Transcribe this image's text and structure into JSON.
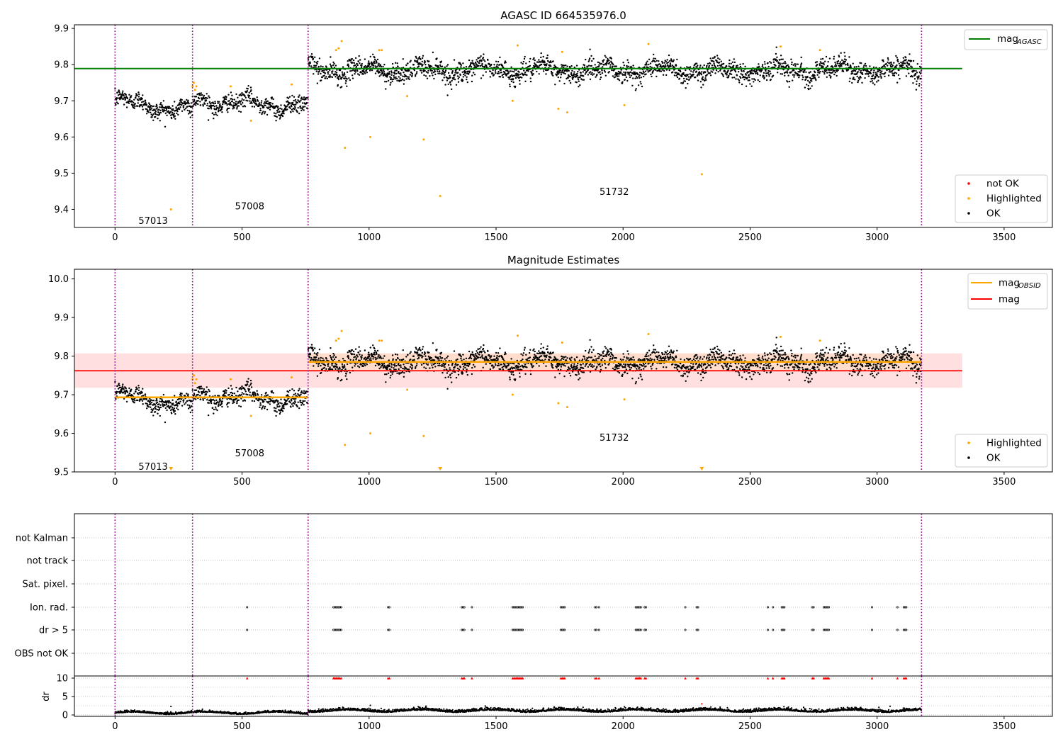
{
  "figure": {
    "title_top": "AGASC ID 664535976.0",
    "title_mid": "Magnitude Estimates"
  },
  "chart_data": [
    {
      "type": "scatter",
      "title": "AGASC ID 664535976.0",
      "xlim": [
        -160,
        3690
      ],
      "ylim": [
        9.35,
        9.91
      ],
      "xticks": [
        0,
        500,
        1000,
        1500,
        2000,
        2500,
        3000,
        3500
      ],
      "yticks": [
        9.4,
        9.5,
        9.6,
        9.7,
        9.8,
        9.9
      ],
      "obs_boundaries": [
        0,
        305,
        760,
        3175
      ],
      "obs_labels": [
        {
          "text": "57013",
          "x": 150,
          "y": 9.37
        },
        {
          "text": "57008",
          "x": 530,
          "y": 9.41
        },
        {
          "text": "51732",
          "x": 1965,
          "y": 9.45
        }
      ],
      "segments": [
        {
          "x0": 0,
          "x1": 305,
          "base": 9.7,
          "trend": -0.03,
          "noise": 0.012,
          "n": 300
        },
        {
          "x0": 305,
          "x1": 760,
          "base": 9.7,
          "trend": -0.015,
          "noise": 0.012,
          "n": 430
        },
        {
          "x0": 760,
          "x1": 3175,
          "base": 9.785,
          "trend": 0.0,
          "noise": 0.014,
          "n": 2300
        }
      ],
      "lines": [
        {
          "name": "mag_AGASC",
          "y": 9.789,
          "x0": -160,
          "x1": 3335,
          "color": "#008000"
        }
      ],
      "highlighted_points": [
        [
          220,
          9.4
        ],
        [
          305,
          9.74
        ],
        [
          310,
          9.75
        ],
        [
          315,
          9.73
        ],
        [
          320,
          9.74
        ],
        [
          455,
          9.74
        ],
        [
          535,
          9.645
        ],
        [
          695,
          9.745
        ],
        [
          870,
          9.84
        ],
        [
          880,
          9.845
        ],
        [
          892,
          9.865
        ],
        [
          905,
          9.57
        ],
        [
          1005,
          9.6
        ],
        [
          1040,
          9.84
        ],
        [
          1050,
          9.84
        ],
        [
          1150,
          9.713
        ],
        [
          1215,
          9.593
        ],
        [
          1280,
          9.437
        ],
        [
          1565,
          9.7
        ],
        [
          1585,
          9.853
        ],
        [
          1745,
          9.678
        ],
        [
          1760,
          9.835
        ],
        [
          1780,
          9.668
        ],
        [
          2005,
          9.688
        ],
        [
          2100,
          9.857
        ],
        [
          2310,
          9.497
        ],
        [
          2620,
          9.85
        ],
        [
          2775,
          9.84
        ]
      ],
      "legend_series": [
        {
          "label": "not OK",
          "color": "#ff0000"
        },
        {
          "label": "Highlighted",
          "color": "#ffa500"
        },
        {
          "label": "OK",
          "color": "#000000"
        }
      ],
      "legend_lines": [
        {
          "label": "mag",
          "sub": "AGASC",
          "color": "#008000"
        }
      ],
      "colors": {
        "ok": "#000000",
        "highlighted": "#ffa500",
        "not_ok": "#ff0000",
        "boundary": "#800080"
      }
    },
    {
      "type": "scatter",
      "title": "Magnitude Estimates",
      "xlim": [
        -160,
        3690
      ],
      "ylim": [
        9.5,
        10.025
      ],
      "xticks": [
        0,
        500,
        1000,
        1500,
        2000,
        2500,
        3000,
        3500
      ],
      "yticks": [
        9.5,
        9.6,
        9.7,
        9.8,
        9.9,
        10.0
      ],
      "obs_boundaries": [
        0,
        305,
        760,
        3175
      ],
      "obs_labels": [
        {
          "text": "57013",
          "x": 150,
          "y": 9.515
        },
        {
          "text": "57008",
          "x": 530,
          "y": 9.55
        },
        {
          "text": "51732",
          "x": 1965,
          "y": 9.59
        }
      ],
      "segments": [
        {
          "x0": 0,
          "x1": 305,
          "base": 9.7,
          "trend": -0.03,
          "noise": 0.012,
          "n": 300
        },
        {
          "x0": 305,
          "x1": 760,
          "base": 9.7,
          "trend": -0.015,
          "noise": 0.012,
          "n": 430
        },
        {
          "x0": 760,
          "x1": 3175,
          "base": 9.785,
          "trend": 0.0,
          "noise": 0.014,
          "n": 2300
        }
      ],
      "mag_band": {
        "y0": 9.718,
        "y1": 9.807,
        "x0": -160,
        "x1": 3335,
        "color": "#ffc0c0"
      },
      "mag_obsid_band": {
        "y0": 9.762,
        "y1": 9.807,
        "x0": 760,
        "x1": 3175,
        "color": "#ffd9b8"
      },
      "lines": [
        {
          "name": "mag",
          "y": 9.762,
          "x0": -160,
          "x1": 3335,
          "color": "#ff0000"
        },
        {
          "name": "mag_OBSID",
          "y": 9.693,
          "x0": 0,
          "x1": 305,
          "color": "#ffa500"
        },
        {
          "name": "mag_OBSID",
          "y": 9.693,
          "x0": 305,
          "x1": 760,
          "color": "#ffa500"
        },
        {
          "name": "mag_OBSID",
          "y": 9.785,
          "x0": 760,
          "x1": 3175,
          "color": "#ffa500"
        }
      ],
      "highlighted_points": [
        [
          305,
          9.74
        ],
        [
          310,
          9.75
        ],
        [
          315,
          9.73
        ],
        [
          320,
          9.74
        ],
        [
          455,
          9.74
        ],
        [
          535,
          9.645
        ],
        [
          695,
          9.745
        ],
        [
          870,
          9.84
        ],
        [
          880,
          9.845
        ],
        [
          892,
          9.865
        ],
        [
          905,
          9.57
        ],
        [
          1005,
          9.6
        ],
        [
          1040,
          9.84
        ],
        [
          1050,
          9.84
        ],
        [
          1150,
          9.713
        ],
        [
          1215,
          9.593
        ],
        [
          1565,
          9.7
        ],
        [
          1585,
          9.853
        ],
        [
          1745,
          9.678
        ],
        [
          1760,
          9.835
        ],
        [
          1780,
          9.668
        ],
        [
          2005,
          9.688
        ],
        [
          2100,
          9.857
        ],
        [
          2620,
          9.85
        ],
        [
          2775,
          9.84
        ]
      ],
      "offscale_markers": [
        220,
        1280,
        2310
      ],
      "legend_series": [
        {
          "label": "Highlighted",
          "color": "#ffa500"
        },
        {
          "label": "OK",
          "color": "#000000"
        }
      ],
      "legend_lines": [
        {
          "label": "mag",
          "sub": "OBSID",
          "color": "#ffa500"
        },
        {
          "label": "mag",
          "sub": "",
          "color": "#ff0000"
        }
      ],
      "colors": {
        "ok": "#000000",
        "highlighted": "#ffa500",
        "boundary": "#800080"
      }
    },
    {
      "type": "scatter",
      "title": "",
      "xlim": [
        -160,
        3690
      ],
      "categories": [
        "not Kalman",
        "not track",
        "Sat. pixel.",
        "Ion. rad.",
        "dr > 5",
        "OBS not OK"
      ],
      "flag_x": [
        520,
        860,
        865,
        870,
        875,
        880,
        885,
        890,
        1075,
        1080,
        1365,
        1370,
        1375,
        1405,
        1565,
        1570,
        1575,
        1580,
        1585,
        1590,
        1595,
        1600,
        1605,
        1755,
        1760,
        1765,
        1770,
        1890,
        1895,
        1905,
        2050,
        2055,
        2060,
        2065,
        2070,
        2085,
        2090,
        2245,
        2290,
        2295,
        2570,
        2590,
        2625,
        2630,
        2635,
        2745,
        2750,
        2790,
        2795,
        2800,
        2805,
        2810,
        2980,
        3080,
        3105,
        3110,
        3115
      ],
      "flag_categories": [
        "Ion. rad.",
        "dr > 5"
      ],
      "dr": {
        "ylabel": "dr",
        "ylim": [
          -0.3,
          10.5
        ],
        "yticks": [
          0,
          5,
          10
        ],
        "segments": [
          {
            "x0": 0,
            "x1": 760,
            "base": 0.45,
            "noise": 0.25,
            "n": 700
          },
          {
            "x0": 760,
            "x1": 3175,
            "base": 1.0,
            "noise": 0.35,
            "n": 2300
          }
        ],
        "outliers": [
          [
            220,
            2.3
          ],
          [
            1005,
            2.6
          ],
          [
            2310,
            3.0
          ]
        ],
        "not_ok_level": 10
      },
      "xticks": [
        0,
        500,
        1000,
        1500,
        2000,
        2500,
        3000,
        3500
      ],
      "obs_boundaries": [
        0,
        305,
        760,
        3175
      ]
    }
  ]
}
